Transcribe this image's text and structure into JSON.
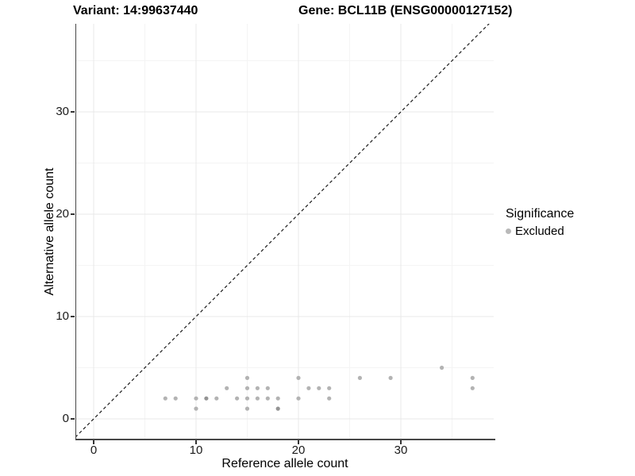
{
  "header": {
    "variant_title": "Variant: 14:99637440",
    "gene_title": "Gene: BCL11B (ENSG00000127152)"
  },
  "chart_data": {
    "type": "scatter",
    "title": "Variant: 14:99637440   Gene: BCL11B (ENSG00000127152)",
    "xlabel": "Reference allele count",
    "ylabel": "Alternative allele count",
    "xlim": [
      -1.8,
      39.2
    ],
    "ylim": [
      -1.9,
      38.6
    ],
    "x_ticks": [
      0,
      10,
      20,
      30
    ],
    "y_ticks": [
      0,
      10,
      20,
      30
    ],
    "x_minor_gridlines": [
      5,
      15,
      25,
      35
    ],
    "y_minor_gridlines": [
      5,
      15,
      25,
      35
    ],
    "grid": true,
    "identity_line": {
      "style": "dashed",
      "slope": 1,
      "intercept": 0
    },
    "legend": {
      "title": "Significance",
      "position": "right",
      "items": [
        {
          "label": "Excluded",
          "color": "#b9b9b9"
        }
      ]
    },
    "series": [
      {
        "name": "Excluded",
        "points": [
          {
            "x": 7,
            "y": 2
          },
          {
            "x": 8,
            "y": 2
          },
          {
            "x": 10,
            "y": 1
          },
          {
            "x": 10,
            "y": 2
          },
          {
            "x": 11,
            "y": 2,
            "overlap": true
          },
          {
            "x": 12,
            "y": 2
          },
          {
            "x": 13,
            "y": 3
          },
          {
            "x": 14,
            "y": 2
          },
          {
            "x": 15,
            "y": 1
          },
          {
            "x": 15,
            "y": 2
          },
          {
            "x": 15,
            "y": 3
          },
          {
            "x": 15,
            "y": 4
          },
          {
            "x": 16,
            "y": 2
          },
          {
            "x": 16,
            "y": 3
          },
          {
            "x": 17,
            "y": 2
          },
          {
            "x": 17,
            "y": 3
          },
          {
            "x": 18,
            "y": 1,
            "overlap": true
          },
          {
            "x": 18,
            "y": 2
          },
          {
            "x": 20,
            "y": 2
          },
          {
            "x": 20,
            "y": 4
          },
          {
            "x": 21,
            "y": 3
          },
          {
            "x": 22,
            "y": 3
          },
          {
            "x": 23,
            "y": 2
          },
          {
            "x": 23,
            "y": 3
          },
          {
            "x": 26,
            "y": 4
          },
          {
            "x": 29,
            "y": 4
          },
          {
            "x": 34,
            "y": 5
          },
          {
            "x": 37,
            "y": 3
          },
          {
            "x": 37,
            "y": 4
          }
        ]
      }
    ]
  },
  "colors": {
    "point": "#b3b3b3",
    "point_overlap": "#949494",
    "grid_major": "#e8e8e8",
    "grid_minor": "#f4f4f4",
    "axis_line": "#474747",
    "identity_line": "#1a1a1a"
  }
}
